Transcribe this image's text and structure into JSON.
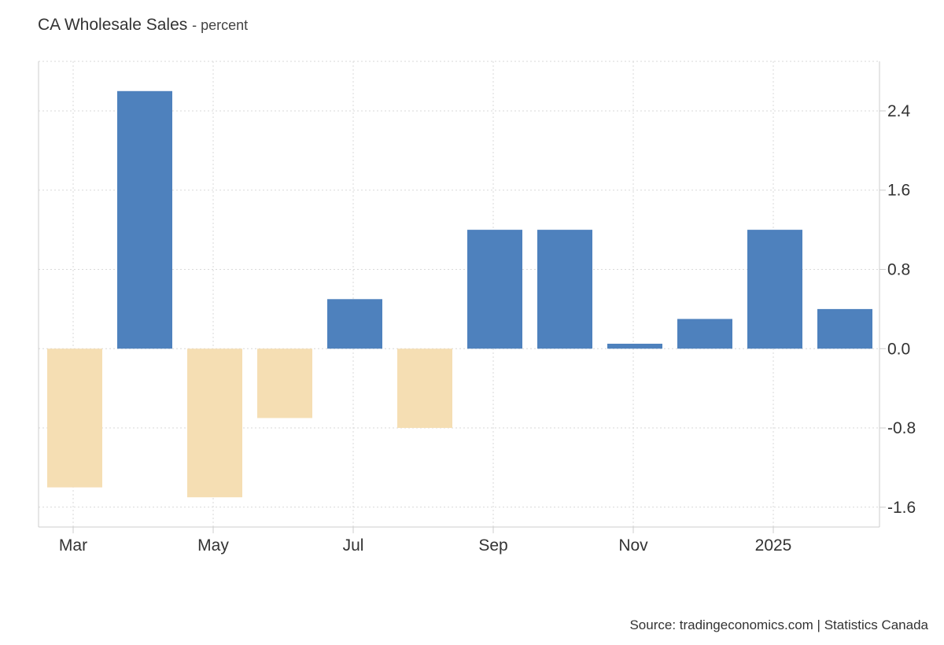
{
  "header": {
    "title": "CA Wholesale Sales",
    "subtitle": "- percent"
  },
  "footer": {
    "source": "Source: tradingeconomics.com | Statistics Canada"
  },
  "chart_data": {
    "type": "bar",
    "title": "CA Wholesale Sales",
    "subtitle": "percent",
    "categories": [
      "Mar 2024",
      "Apr 2024",
      "May 2024",
      "Jun 2024",
      "Jul 2024",
      "Aug 2024",
      "Sep 2024",
      "Oct 2024",
      "Nov 2024",
      "Dec 2024",
      "Jan 2025",
      "Feb 2025"
    ],
    "values": [
      -1.4,
      2.6,
      -1.5,
      -0.7,
      0.5,
      -0.8,
      1.2,
      1.2,
      0.05,
      0.3,
      1.2,
      0.4
    ],
    "x_tick_labels": [
      {
        "label": "Mar",
        "index": 0
      },
      {
        "label": "May",
        "index": 2
      },
      {
        "label": "Jul",
        "index": 4
      },
      {
        "label": "Sep",
        "index": 6
      },
      {
        "label": "Nov",
        "index": 8
      },
      {
        "label": "2025",
        "index": 10
      }
    ],
    "y_ticks": [
      2.4,
      1.6,
      0.8,
      0.0,
      -0.8,
      -1.6
    ],
    "y_tick_labels": [
      "2.4",
      "1.6",
      "0.8",
      "0.0",
      "-0.8",
      "-1.6"
    ],
    "ylim": [
      -1.8,
      2.9
    ],
    "y_axis_position": "right",
    "grid": true,
    "colors": {
      "positive": "#4e81bd",
      "negative": "#f5deb3",
      "grid": "#d9d9d9",
      "axis": "#cccccc"
    }
  }
}
